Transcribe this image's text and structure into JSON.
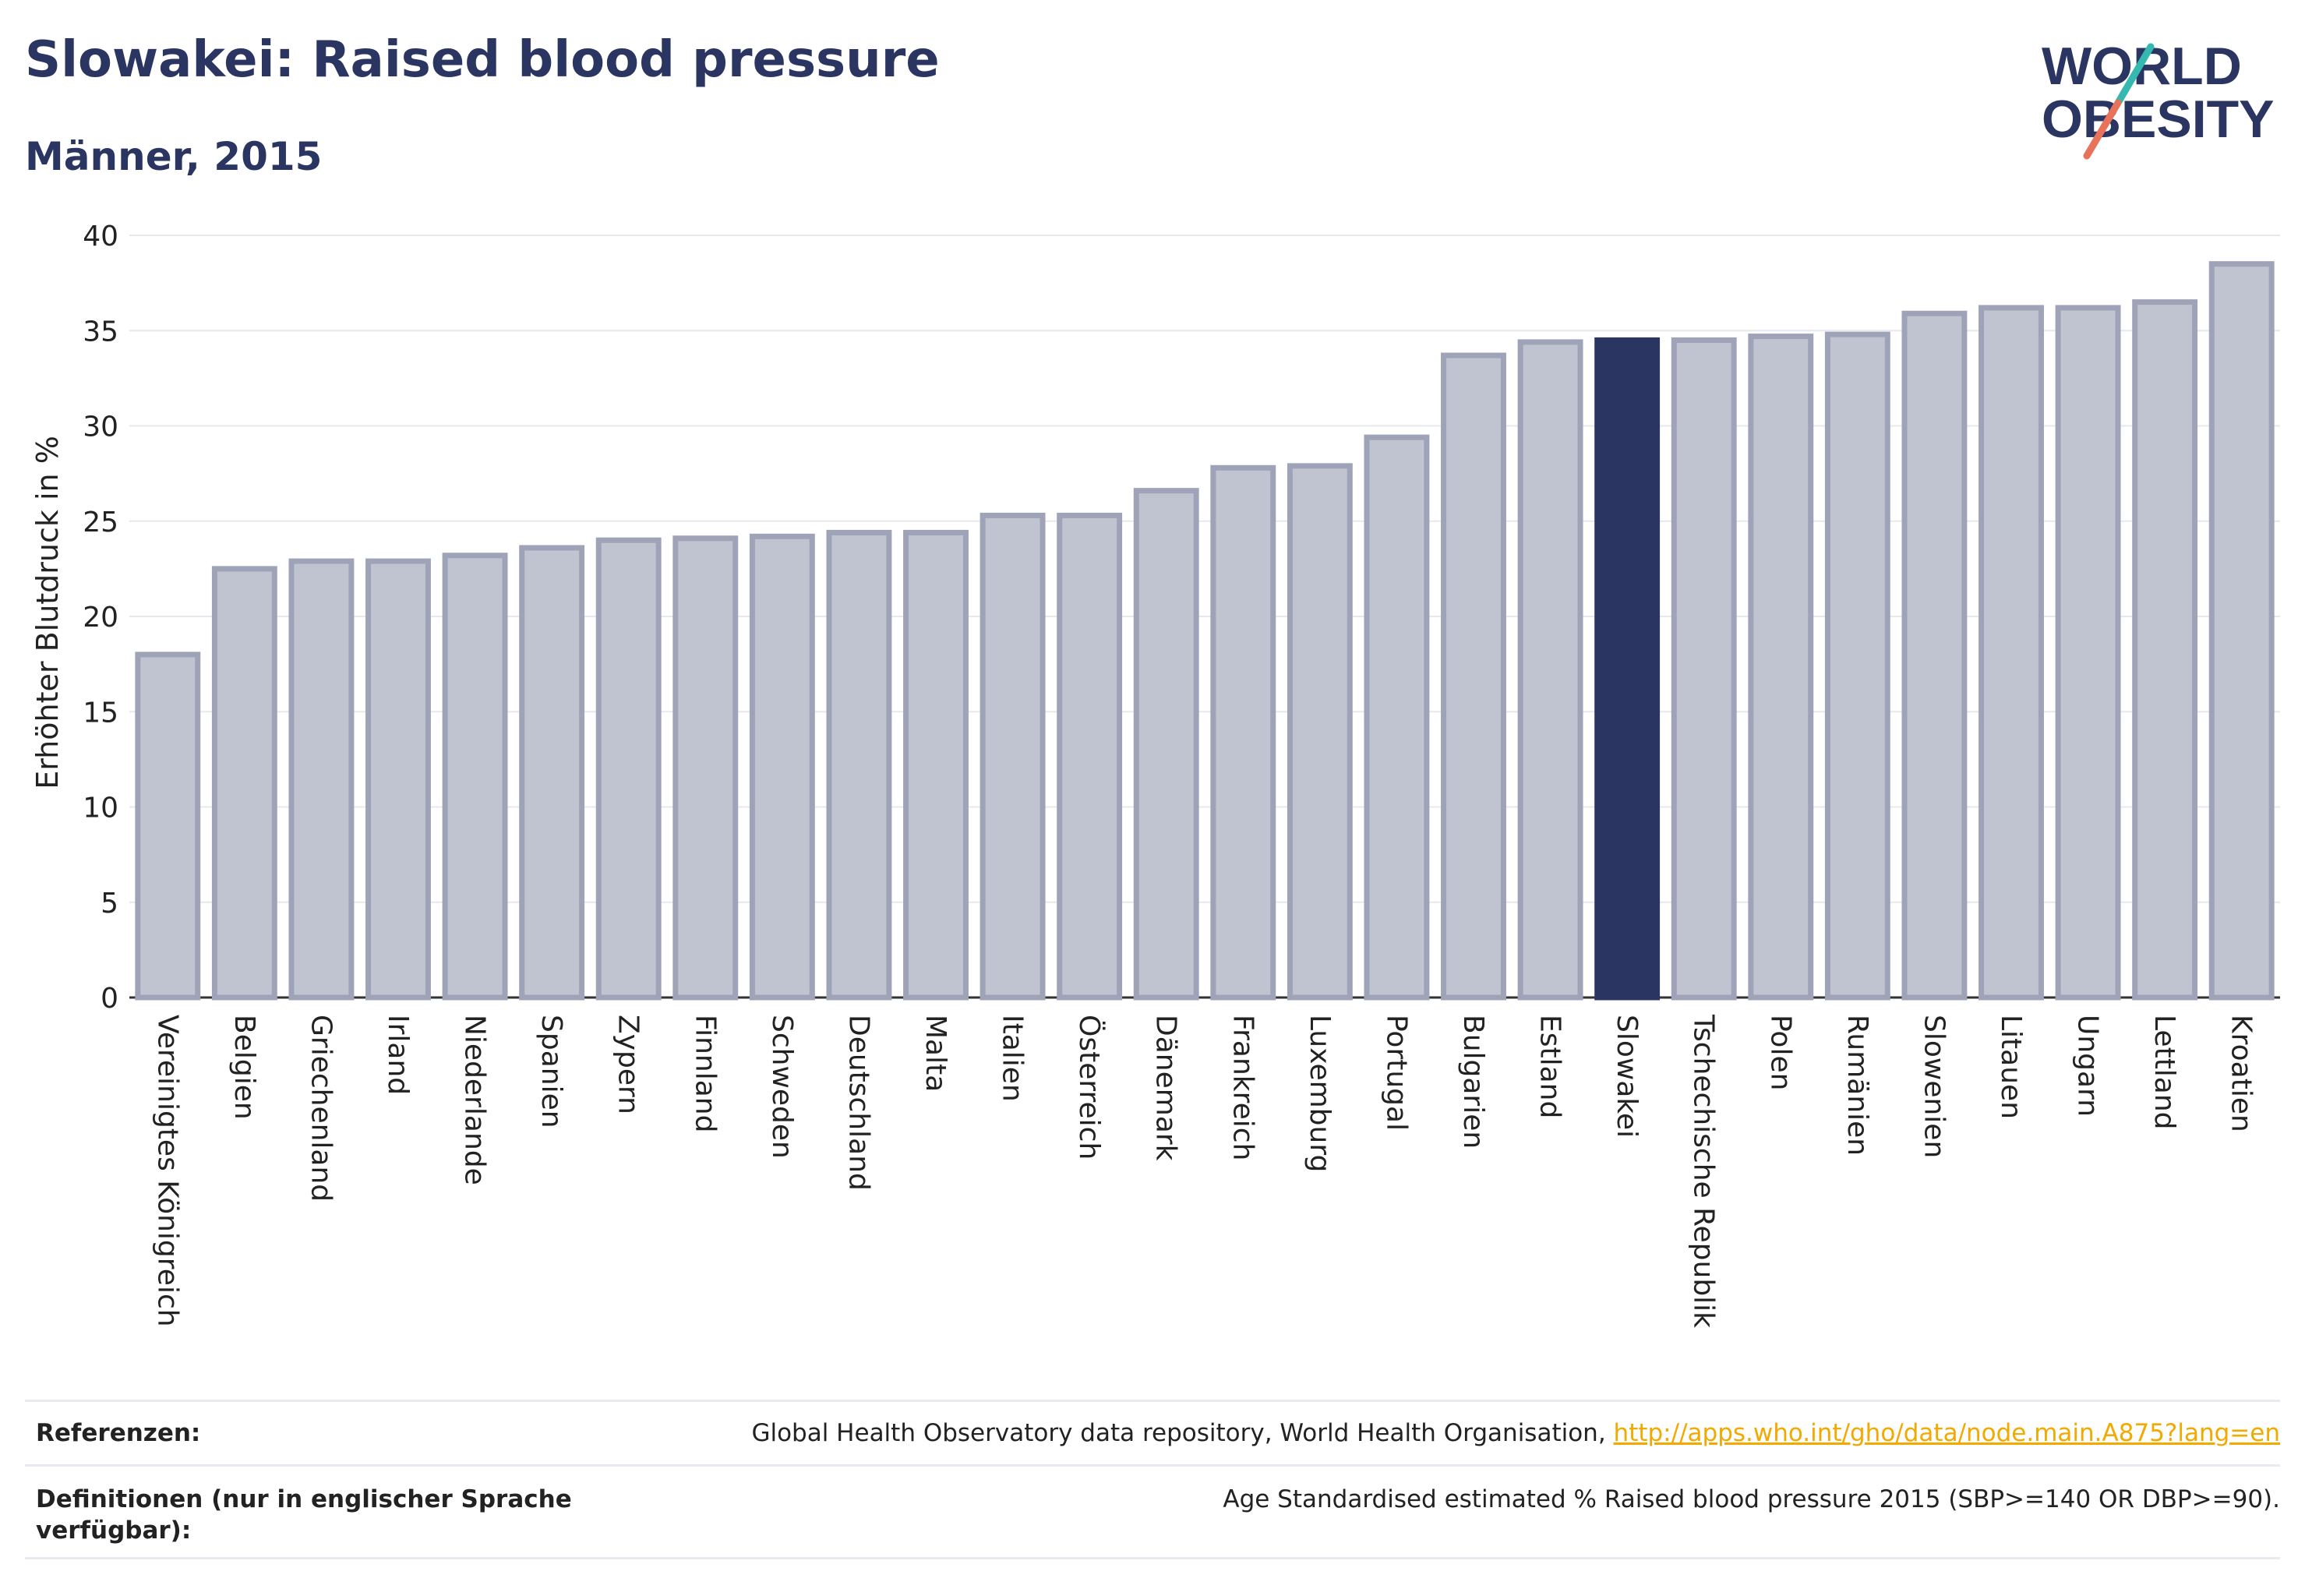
{
  "header": {
    "title": "Slowakei: Raised blood pressure",
    "subtitle": "Männer, 2015"
  },
  "logo": {
    "line1": "WORLD",
    "line2": "OBESITY",
    "icon": "world-obesity-logo"
  },
  "colors": {
    "title": "#2b3561",
    "highlight_bar": "#2b3561",
    "bar_fill": "#c0c3d0",
    "bar_stroke": "#9ea3b8",
    "link": "#f2a900",
    "logo_slash_teal": "#35b8b0",
    "logo_slash_coral": "#e8735a"
  },
  "chart_data": {
    "type": "bar",
    "ylabel": "Erhöhter Blutdruck in %",
    "ylim": [
      0,
      40
    ],
    "yticks": [
      0,
      5,
      10,
      15,
      20,
      25,
      30,
      35,
      40
    ],
    "grid": true,
    "highlight": "Slowakei",
    "categories": [
      "Vereinigtes Königreich",
      "Belgien",
      "Griechenland",
      "Irland",
      "Niederlande",
      "Spanien",
      "Zypern",
      "Finnland",
      "Schweden",
      "Deutschland",
      "Malta",
      "Italien",
      "Österreich",
      "Dänemark",
      "Frankreich",
      "Luxemburg",
      "Portugal",
      "Bulgarien",
      "Estland",
      "Slowakei",
      "Tschechische Republik",
      "Polen",
      "Rumänien",
      "Slowenien",
      "Litauen",
      "Ungarn",
      "Lettland",
      "Kroatien"
    ],
    "values": [
      18.0,
      22.5,
      22.9,
      22.9,
      23.2,
      23.6,
      24.0,
      24.1,
      24.2,
      24.4,
      24.4,
      25.3,
      25.3,
      26.6,
      27.8,
      27.9,
      29.4,
      33.7,
      34.4,
      34.5,
      34.5,
      34.7,
      34.8,
      35.9,
      36.2,
      36.2,
      36.5,
      38.5
    ]
  },
  "references": {
    "label": "Referenzen:",
    "text": "Global Health Observatory data repository, World Health Organisation, ",
    "link": "http://apps.who.int/gho/data/node.main.A875?lang=en"
  },
  "definitions": {
    "label": "Definitionen (nur in englischer Sprache verfügbar):",
    "text": "Age Standardised estimated % Raised blood pressure 2015 (SBP>=140 OR DBP>=90)."
  }
}
